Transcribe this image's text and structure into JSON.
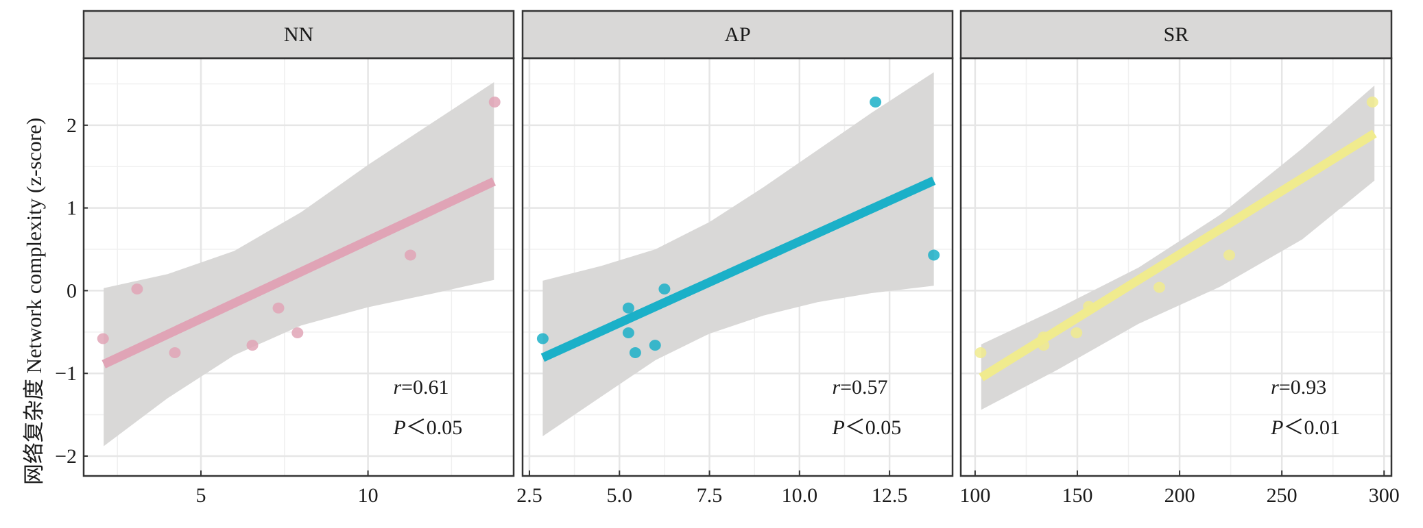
{
  "chart_data": {
    "type": "scatter",
    "layout": "facets-1x3",
    "ylabel": "网络复杂度 Network complexity (z-score)",
    "xlabel": "",
    "ylim": [
      -2.24,
      2.81
    ],
    "yticks": [
      -2,
      -1,
      0,
      1,
      2
    ],
    "yticks_minor": [
      -1.5,
      -0.5,
      0.5,
      1.5,
      2.5
    ],
    "y_tick_labels": [
      "−2",
      "−1",
      "0",
      "1",
      "2"
    ],
    "grid": true,
    "ci_fill": "#d9d8d7",
    "strip_fill": "#d9d8d7",
    "facets": [
      {
        "title": "NN",
        "color": "#e0a4b6",
        "xlim": [
          1.49,
          14.36
        ],
        "xticks": [
          5,
          10
        ],
        "x_tick_labels": [
          "5",
          "10"
        ],
        "xticks_minor": [
          2.5,
          7.5,
          12.5
        ],
        "points": [
          {
            "x": 2.07,
            "y": -0.58
          },
          {
            "x": 3.09,
            "y": 0.02
          },
          {
            "x": 4.22,
            "y": -0.75
          },
          {
            "x": 6.54,
            "y": -0.66
          },
          {
            "x": 7.32,
            "y": -0.21
          },
          {
            "x": 7.89,
            "y": -0.51
          },
          {
            "x": 11.27,
            "y": 0.43
          },
          {
            "x": 13.79,
            "y": 2.28
          }
        ],
        "fit": {
          "x": [
            2.09,
            13.77
          ],
          "y": [
            -0.89,
            1.32
          ]
        },
        "ci": {
          "x": [
            2.09,
            4.0,
            6.0,
            8.0,
            10.0,
            12.0,
            13.77
          ],
          "upper": [
            0.03,
            0.2,
            0.48,
            0.95,
            1.52,
            2.05,
            2.52
          ],
          "lower": [
            -1.88,
            -1.3,
            -0.78,
            -0.42,
            -0.2,
            -0.03,
            0.13
          ]
        },
        "annotation": {
          "r_symbol": "r",
          "r_value": "=0.61",
          "p_symbol": "P",
          "p_value": "＜0.05"
        }
      },
      {
        "title": "AP",
        "color": "#1bb0c8",
        "xlim": [
          2.31,
          14.25
        ],
        "xticks": [
          2.5,
          5.0,
          7.5,
          10.0,
          12.5
        ],
        "x_tick_labels": [
          "2.5",
          "5.0",
          "7.5",
          "10.0",
          "12.5"
        ],
        "xticks_minor": [
          3.75,
          6.25,
          8.75,
          11.25
        ],
        "points": [
          {
            "x": 2.87,
            "y": -0.58
          },
          {
            "x": 5.25,
            "y": -0.21
          },
          {
            "x": 5.25,
            "y": -0.51
          },
          {
            "x": 5.44,
            "y": -0.75
          },
          {
            "x": 5.99,
            "y": -0.66
          },
          {
            "x": 6.25,
            "y": 0.02
          },
          {
            "x": 12.11,
            "y": 2.28
          },
          {
            "x": 13.73,
            "y": 0.43
          }
        ],
        "fit": {
          "x": [
            2.87,
            13.73
          ],
          "y": [
            -0.81,
            1.33
          ]
        },
        "ci": {
          "x": [
            2.87,
            4.5,
            6.0,
            7.5,
            9.0,
            10.5,
            12.0,
            13.73
          ],
          "upper": [
            0.12,
            0.3,
            0.5,
            0.83,
            1.25,
            1.7,
            2.15,
            2.64
          ],
          "lower": [
            -1.76,
            -1.28,
            -0.84,
            -0.52,
            -0.3,
            -0.14,
            -0.03,
            0.06
          ]
        },
        "annotation": {
          "r_symbol": "r",
          "r_value": "=0.57",
          "p_symbol": "P",
          "p_value": "＜0.05"
        }
      },
      {
        "title": "SR",
        "color": "#f0eb8e",
        "xlim": [
          93.0,
          303.6
        ],
        "xticks": [
          100,
          150,
          200,
          250,
          300
        ],
        "x_tick_labels": [
          "100",
          "150",
          "200",
          "250",
          "300"
        ],
        "xticks_minor": [
          125,
          175,
          225,
          275
        ],
        "points": [
          {
            "x": 102.7,
            "y": -0.75
          },
          {
            "x": 133.5,
            "y": -0.56
          },
          {
            "x": 133.5,
            "y": -0.66
          },
          {
            "x": 149.6,
            "y": -0.51
          },
          {
            "x": 155.6,
            "y": -0.19
          },
          {
            "x": 190.1,
            "y": 0.04
          },
          {
            "x": 224.3,
            "y": 0.43
          },
          {
            "x": 294.3,
            "y": 2.28
          }
        ],
        "fit": {
          "x": [
            103.0,
            295.3
          ],
          "y": [
            -1.05,
            1.9
          ]
        },
        "ci": {
          "x": [
            103.0,
            140.0,
            180.0,
            220.0,
            260.0,
            295.3
          ],
          "upper": [
            -0.65,
            -0.22,
            0.28,
            0.92,
            1.72,
            2.48
          ],
          "lower": [
            -1.44,
            -0.96,
            -0.4,
            0.05,
            0.62,
            1.33
          ]
        },
        "annotation": {
          "r_symbol": "r",
          "r_value": "=0.93",
          "p_symbol": "P",
          "p_value": "＜0.01"
        }
      }
    ]
  }
}
